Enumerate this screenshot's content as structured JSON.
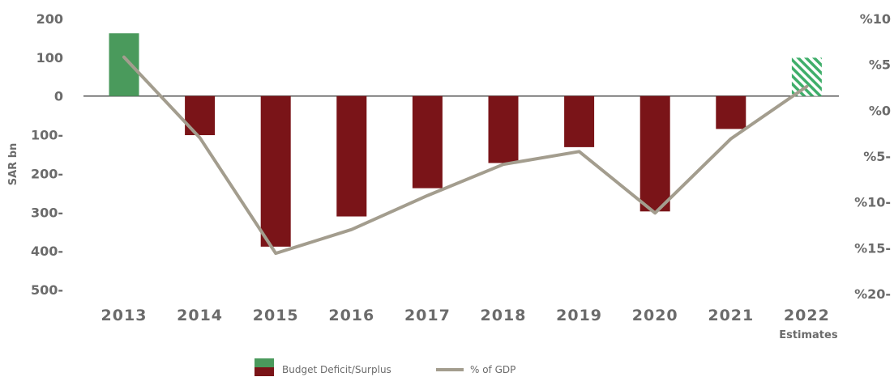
{
  "chart_data": {
    "type": "bar",
    "categories": [
      "2013",
      "2014",
      "2015",
      "2016",
      "2017",
      "2018",
      "2019",
      "2020",
      "2021",
      "2022"
    ],
    "category_note": {
      "2022": "Estimates"
    },
    "series": [
      {
        "name": "Budget Deficit/Surplus",
        "type": "bar",
        "axis": "left",
        "values": [
          162,
          -101,
          -389,
          -311,
          -238,
          -173,
          -132,
          -298,
          -85,
          99
        ]
      },
      {
        "name": "% of GDP",
        "type": "line",
        "axis": "right",
        "values": [
          5.8,
          -3.0,
          -15.6,
          -13.0,
          -9.3,
          -5.9,
          -4.5,
          -11.2,
          -3.1,
          2.6
        ]
      }
    ],
    "ylabel": "SAR bn",
    "ylim": [
      -500,
      200
    ],
    "yticks": [
      "200",
      "100",
      "0",
      "100-",
      "200-",
      "300-",
      "400-",
      "500-"
    ],
    "y2lim": [
      -20,
      10
    ],
    "y2ticks": [
      "%10",
      "%5",
      "%0",
      "%5-",
      "%10-",
      "%15-",
      "%20-"
    ],
    "colors": {
      "surplus": "#4a9a5c",
      "deficit": "#7a1418",
      "estimate_hatch": "#3fae6a",
      "line": "#a39d8e",
      "zero_line": "#555555",
      "text": "#6b6b6b"
    },
    "legend": {
      "position": "bottom-center",
      "items": [
        "Budget Deficit/Surplus",
        "% of GDP"
      ]
    }
  }
}
